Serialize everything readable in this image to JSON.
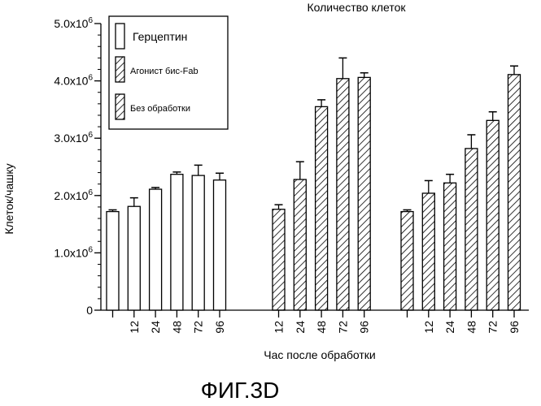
{
  "chart_data": {
    "type": "bar",
    "title": "Количество клеток",
    "xlabel": "Час после обработки",
    "ylabel": "Клеток/чашку",
    "figure_caption": "ФИГ.3D",
    "y_axis": {
      "min": 0,
      "max": 5000000,
      "ticks": [
        {
          "value": 0,
          "label": "0",
          "exp": ""
        },
        {
          "value": 1000000,
          "label": "1.0x10",
          "exp": "6"
        },
        {
          "value": 2000000,
          "label": "2.0x10",
          "exp": "6"
        },
        {
          "value": 3000000,
          "label": "3.0x10",
          "exp": "6"
        },
        {
          "value": 4000000,
          "label": "4.0x10",
          "exp": "6"
        },
        {
          "value": 5000000,
          "label": "5.0x10",
          "exp": "6"
        }
      ]
    },
    "legend": {
      "position": "top-left",
      "entries": [
        {
          "name": "Герцептин",
          "pattern": "open"
        },
        {
          "name": "Агонист бис-Fab",
          "pattern": "hatch"
        },
        {
          "name": "Без обработки",
          "pattern": "hatch"
        }
      ]
    },
    "groups": [
      {
        "name": "Герцептин",
        "pattern": "open",
        "categories": [
          "",
          "12",
          "24",
          "48",
          "72",
          "96"
        ],
        "values": [
          1720000,
          1810000,
          2110000,
          2370000,
          2350000,
          2270000
        ],
        "errors": [
          30000,
          150000,
          30000,
          40000,
          180000,
          120000
        ]
      },
      {
        "name": "Агонист бис-Fab",
        "pattern": "hatch",
        "categories": [
          "12",
          "24",
          "48",
          "72",
          "96"
        ],
        "values": [
          1760000,
          2280000,
          3550000,
          4040000,
          4060000
        ],
        "errors": [
          80000,
          310000,
          120000,
          360000,
          80000
        ]
      },
      {
        "name": "Без обработки",
        "pattern": "hatch",
        "categories": [
          "",
          "12",
          "24",
          "48",
          "72",
          "96"
        ],
        "values": [
          1720000,
          2040000,
          2220000,
          2820000,
          3310000,
          4110000
        ],
        "errors": [
          30000,
          220000,
          150000,
          240000,
          150000,
          150000
        ]
      }
    ]
  }
}
